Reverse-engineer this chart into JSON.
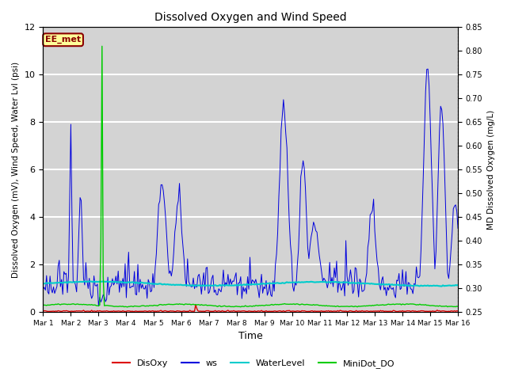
{
  "title": "Dissolved Oxygen and Wind Speed",
  "ylabel_left": "Dissolved Oxygen (mV), Wind Speed, Water Lvl (psi)",
  "ylabel_right": "MD Dissolved Oxygen (mg/L)",
  "xlabel": "Time",
  "ylim_left": [
    0,
    12
  ],
  "ylim_right": [
    0.25,
    0.85
  ],
  "yticks_left": [
    0,
    2,
    4,
    6,
    8,
    10,
    12
  ],
  "yticks_right": [
    0.25,
    0.3,
    0.35,
    0.4,
    0.45,
    0.5,
    0.55,
    0.6,
    0.65,
    0.7,
    0.75,
    0.8,
    0.85
  ],
  "xtick_labels": [
    "Mar 1",
    "Mar 2",
    "Mar 3",
    "Mar 4",
    "Mar 5",
    "Mar 6",
    "Mar 7",
    "Mar 8",
    "Mar 9",
    "Mar 10",
    "Mar 11",
    "Mar 12",
    "Mar 13",
    "Mar 14",
    "Mar 15",
    "Mar 16"
  ],
  "annotation_text": "EE_met",
  "annotation_color": "#8B0000",
  "annotation_bg": "#FFFF99",
  "plot_bg_color": "#D3D3D3",
  "fig_bg_color": "#FFFFFF",
  "grid_color": "#FFFFFF",
  "line_colors": {
    "DisOxy": "#DD0000",
    "ws": "#0000DD",
    "WaterLevel": "#00CCCC",
    "MiniDot_DO": "#00CC00"
  },
  "legend_labels": [
    "DisOxy",
    "ws",
    "WaterLevel",
    "MiniDot_DO"
  ]
}
